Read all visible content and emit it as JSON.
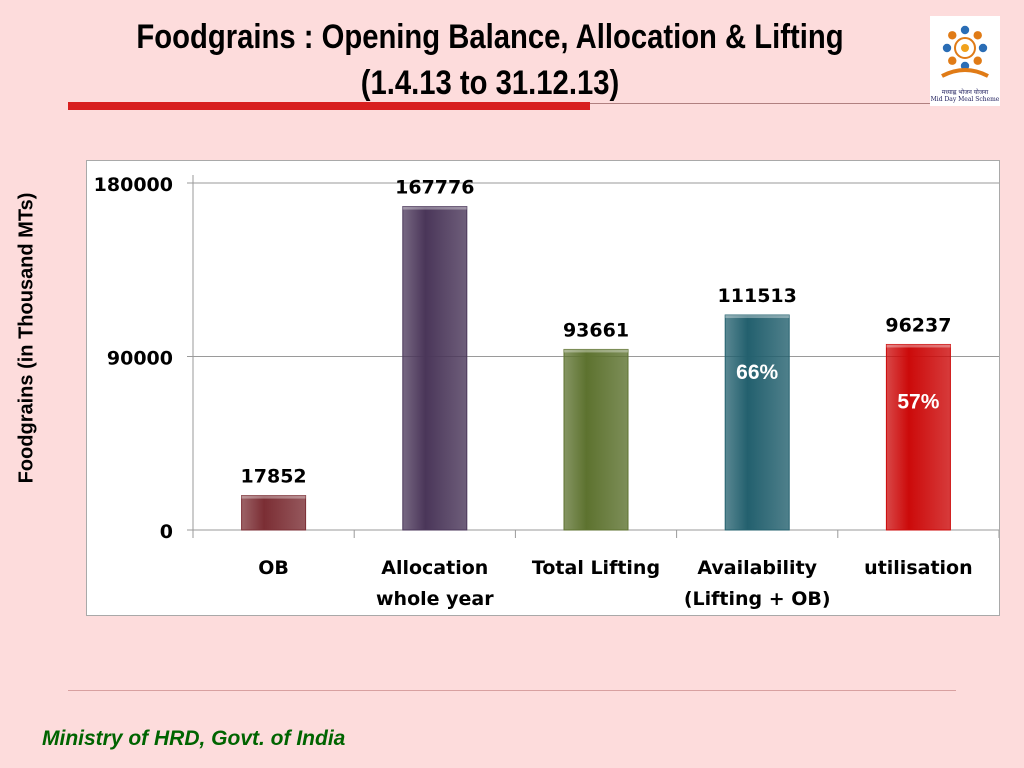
{
  "title": {
    "line1": "Foodgrains : Opening Balance, Allocation & Lifting",
    "line2": "(1.4.13 to 31.12.13)"
  },
  "logo": {
    "caption_line1": "मध्याह्न भोजन योजना",
    "caption_line2": "Mid Day Meal Scheme"
  },
  "footer": "Ministry of HRD, Govt. of India",
  "chart_data": {
    "type": "bar",
    "title": "",
    "xlabel": "",
    "ylabel": "Foodgrains (in Thousand MTs)",
    "ylim": [
      0,
      180000
    ],
    "yticks": [
      "0",
      "90000",
      "180000"
    ],
    "grid": true,
    "legend": "none",
    "categories": [
      [
        "OB"
      ],
      [
        "Allocation",
        "whole year"
      ],
      [
        "Total Lifting"
      ],
      [
        "Availability",
        "(Lifting + OB)"
      ],
      [
        "utilisation"
      ]
    ],
    "values": [
      17852,
      167776,
      93661,
      111513,
      96237
    ],
    "data_labels": [
      "17852",
      "167776",
      "93661",
      "111513",
      "96237"
    ],
    "inner_labels": [
      "",
      "",
      "",
      "66%",
      "57%"
    ],
    "colors": [
      "#7b2e34",
      "#4a3659",
      "#5d722f",
      "#23606e",
      "#cc0a0a"
    ]
  }
}
